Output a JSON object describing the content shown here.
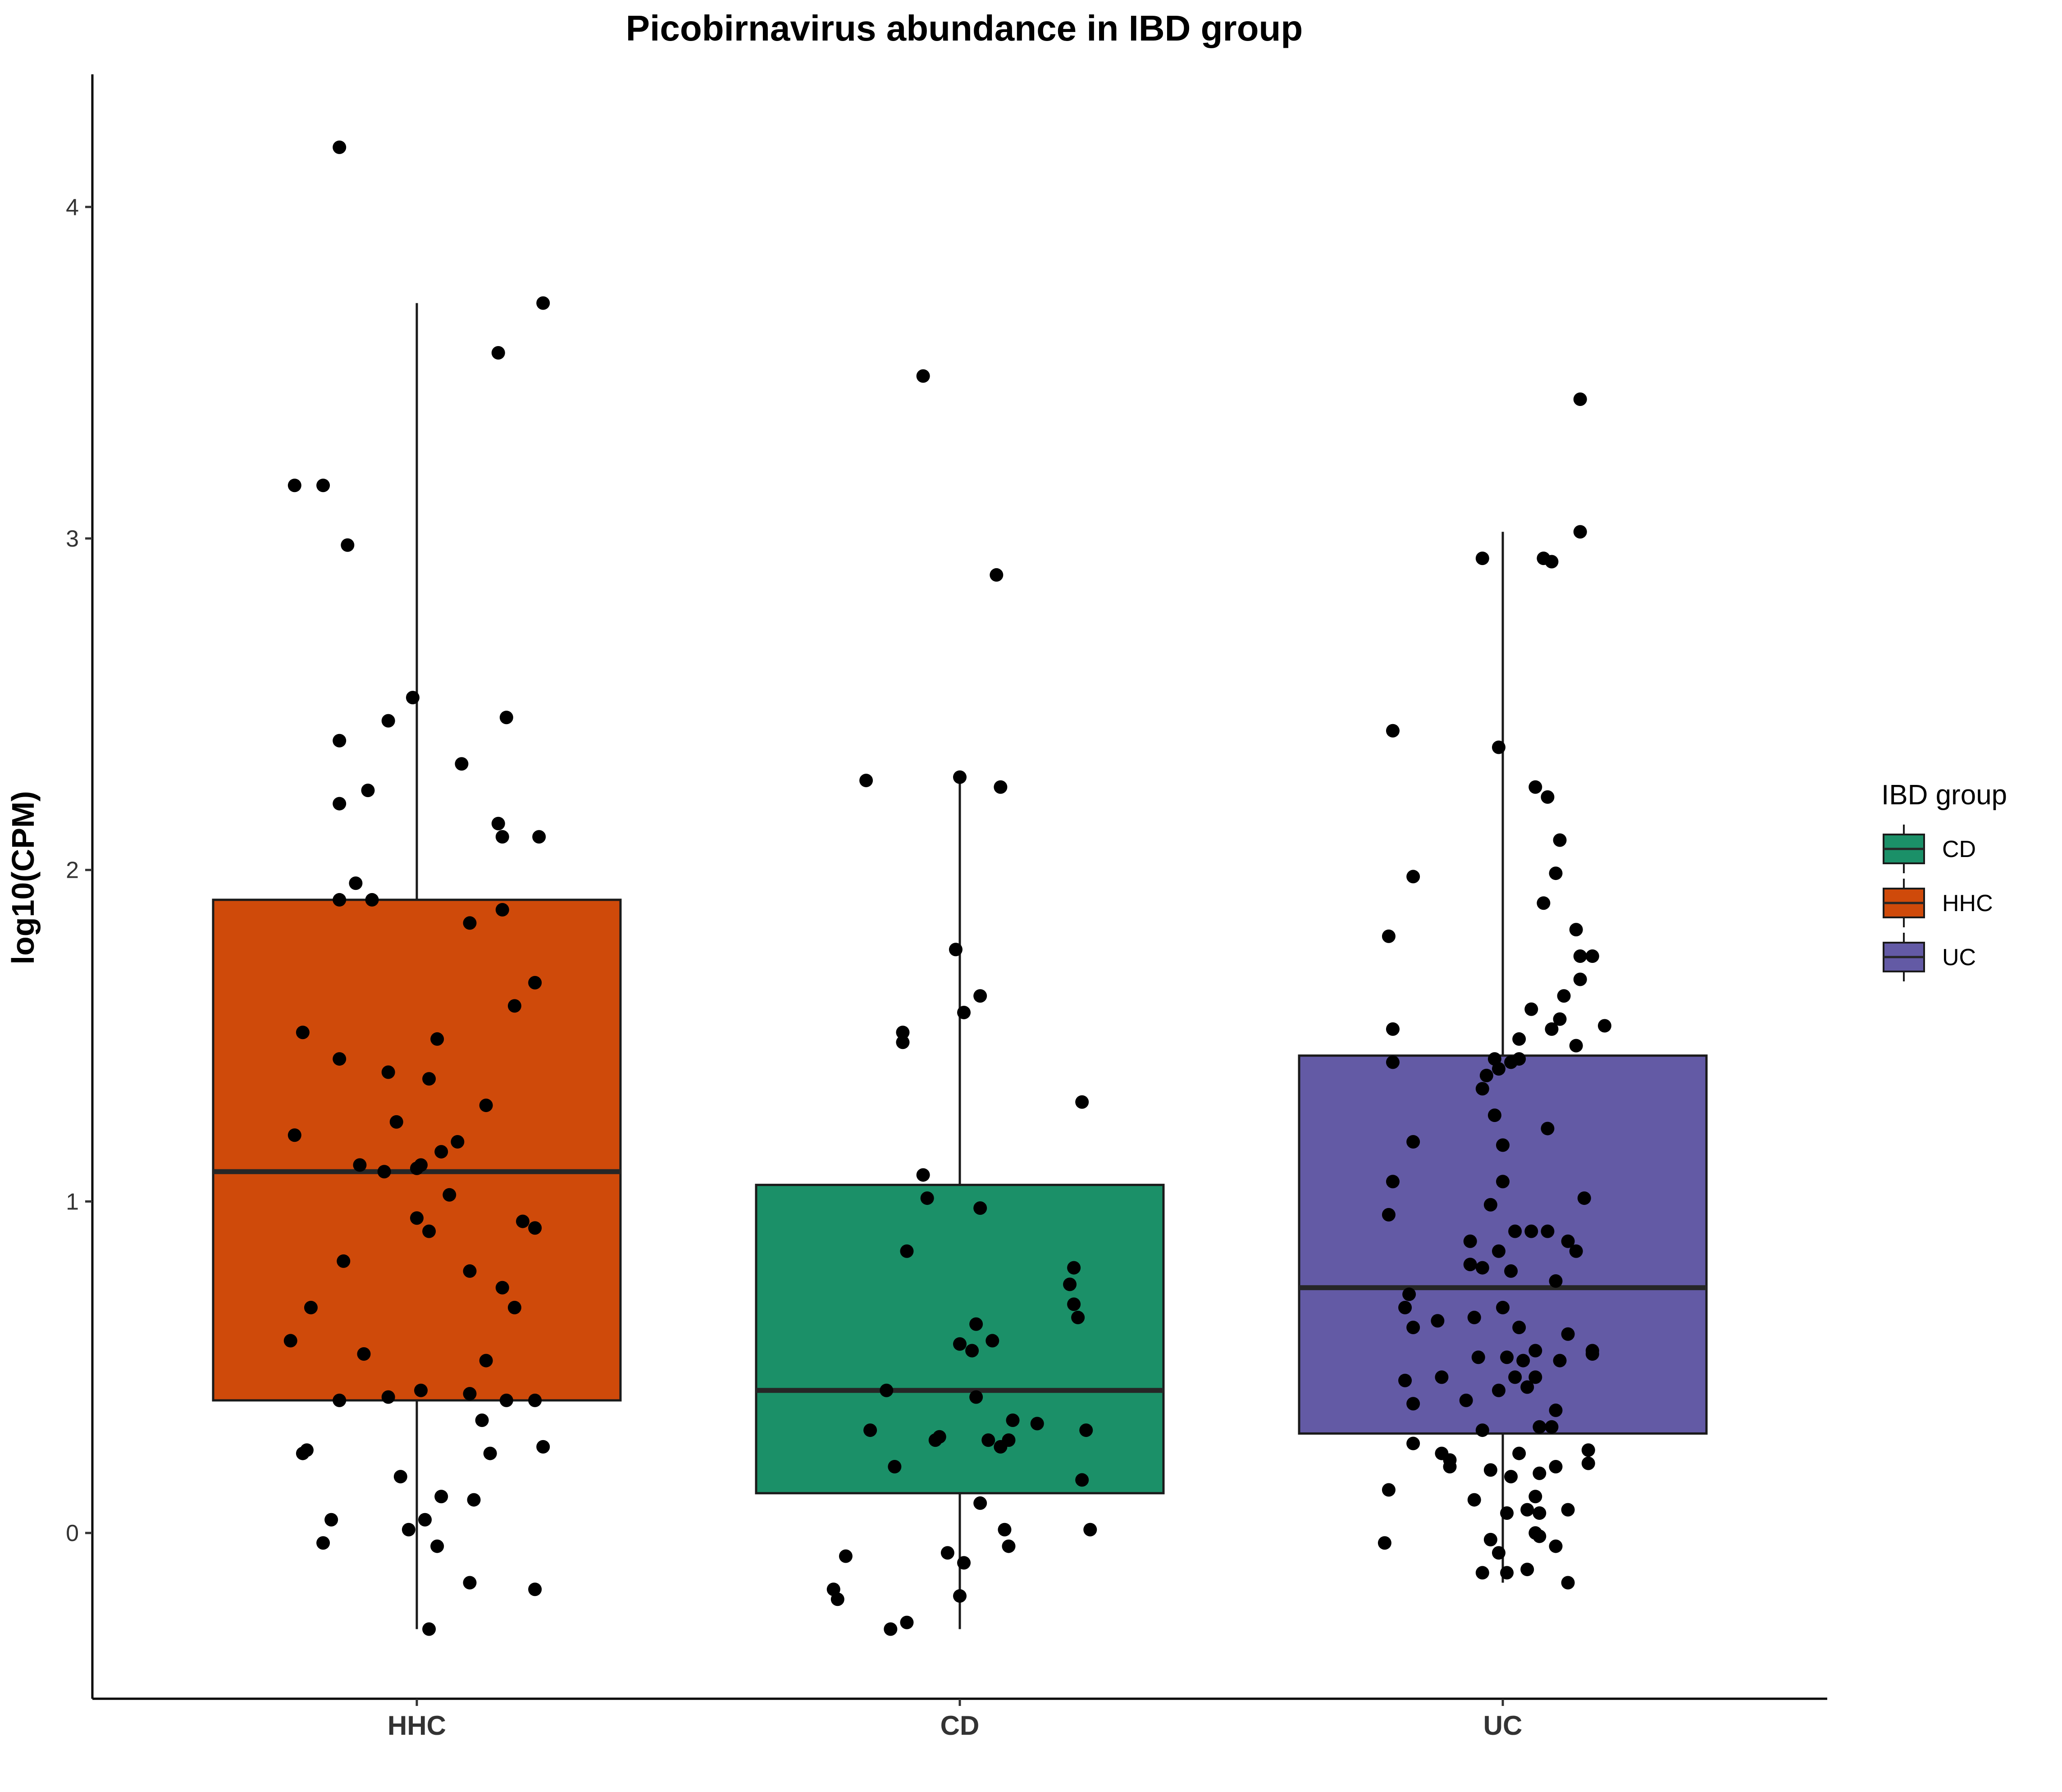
{
  "chart_data": {
    "type": "box",
    "title": "Picobirnavirus abundance in IBD group",
    "xlabel": "",
    "ylabel": "log10(CPM)",
    "ylim": [
      -0.5,
      4.4
    ],
    "yticks": [
      0,
      1,
      2,
      3,
      4
    ],
    "grid": false,
    "categories": [
      "HHC",
      "CD",
      "UC"
    ],
    "legend": {
      "title": "IBD group",
      "placement": "right",
      "entries": [
        {
          "label": "CD",
          "color": "#1b9068"
        },
        {
          "label": "HHC",
          "color": "#cf4a0a"
        },
        {
          "label": "UC",
          "color": "#635aa5"
        }
      ]
    },
    "boxes": [
      {
        "group": "HHC",
        "color": "#cf4a0a",
        "q1": 0.4,
        "median": 1.09,
        "q3": 1.91,
        "whisker_low": -0.29,
        "whisker_high": 3.71
      },
      {
        "group": "CD",
        "color": "#1b9068",
        "q1": 0.12,
        "median": 0.43,
        "q3": 1.05,
        "whisker_low": -0.29,
        "whisker_high": 2.29
      },
      {
        "group": "UC",
        "color": "#635aa5",
        "q1": 0.3,
        "median": 0.74,
        "q3": 1.44,
        "whisker_low": -0.15,
        "whisker_high": 3.02
      }
    ],
    "points": {
      "HHC": [
        [
          -0.19,
          4.18
        ],
        [
          0.31,
          3.71
        ],
        [
          0.2,
          3.56
        ],
        [
          -0.3,
          3.16
        ],
        [
          -0.23,
          3.16
        ],
        [
          -0.17,
          2.98
        ],
        [
          -0.01,
          2.52
        ],
        [
          0.22,
          2.46
        ],
        [
          -0.07,
          2.45
        ],
        [
          -0.19,
          2.39
        ],
        [
          0.11,
          2.32
        ],
        [
          -0.12,
          2.24
        ],
        [
          -0.19,
          2.2
        ],
        [
          0.2,
          2.14
        ],
        [
          0.21,
          2.1
        ],
        [
          0.3,
          2.1
        ],
        [
          -0.15,
          1.96
        ],
        [
          -0.19,
          1.91
        ],
        [
          -0.11,
          1.91
        ],
        [
          0.21,
          1.88
        ],
        [
          0.13,
          1.84
        ],
        [
          0.29,
          1.66
        ],
        [
          0.24,
          1.59
        ],
        [
          -0.28,
          1.51
        ],
        [
          0.05,
          1.49
        ],
        [
          -0.19,
          1.43
        ],
        [
          -0.07,
          1.39
        ],
        [
          0.03,
          1.37
        ],
        [
          0.17,
          1.29
        ],
        [
          -0.05,
          1.24
        ],
        [
          -0.3,
          1.2
        ],
        [
          0.1,
          1.18
        ],
        [
          0.06,
          1.15
        ],
        [
          -0.14,
          1.11
        ],
        [
          -0.08,
          1.09
        ],
        [
          0.0,
          1.1
        ],
        [
          0.01,
          1.11
        ],
        [
          0.08,
          1.02
        ],
        [
          0.0,
          0.95
        ],
        [
          0.03,
          0.91
        ],
        [
          0.26,
          0.94
        ],
        [
          0.29,
          0.92
        ],
        [
          -0.18,
          0.82
        ],
        [
          0.13,
          0.79
        ],
        [
          0.21,
          0.74
        ],
        [
          -0.26,
          0.68
        ],
        [
          0.24,
          0.68
        ],
        [
          -0.31,
          0.58
        ],
        [
          -0.13,
          0.54
        ],
        [
          0.17,
          0.52
        ],
        [
          0.01,
          0.43
        ],
        [
          0.13,
          0.42
        ],
        [
          -0.07,
          0.41
        ],
        [
          -0.19,
          0.4
        ],
        [
          0.22,
          0.4
        ],
        [
          0.29,
          0.4
        ],
        [
          0.16,
          0.34
        ],
        [
          -0.27,
          0.25
        ],
        [
          -0.28,
          0.24
        ],
        [
          0.18,
          0.24
        ],
        [
          0.31,
          0.26
        ],
        [
          -0.04,
          0.17
        ],
        [
          0.06,
          0.11
        ],
        [
          0.14,
          0.1
        ],
        [
          -0.21,
          0.04
        ],
        [
          0.02,
          0.04
        ],
        [
          -0.02,
          0.01
        ],
        [
          0.05,
          -0.04
        ],
        [
          -0.23,
          -0.03
        ],
        [
          0.13,
          -0.15
        ],
        [
          0.29,
          -0.17
        ],
        [
          0.03,
          -0.29
        ]
      ],
      "CD": [
        [
          -0.09,
          3.49
        ],
        [
          0.09,
          2.89
        ],
        [
          -0.23,
          2.27
        ],
        [
          0.0,
          2.28
        ],
        [
          0.1,
          2.25
        ],
        [
          -0.01,
          1.76
        ],
        [
          0.05,
          1.62
        ],
        [
          0.01,
          1.57
        ],
        [
          -0.14,
          1.51
        ],
        [
          -0.14,
          1.48
        ],
        [
          0.3,
          1.3
        ],
        [
          -0.09,
          1.08
        ],
        [
          -0.08,
          1.01
        ],
        [
          0.05,
          0.98
        ],
        [
          -0.13,
          0.85
        ],
        [
          0.28,
          0.8
        ],
        [
          0.27,
          0.75
        ],
        [
          0.28,
          0.69
        ],
        [
          0.29,
          0.65
        ],
        [
          0.04,
          0.63
        ],
        [
          0.08,
          0.58
        ],
        [
          0.0,
          0.57
        ],
        [
          0.03,
          0.55
        ],
        [
          -0.18,
          0.43
        ],
        [
          0.04,
          0.41
        ],
        [
          0.13,
          0.34
        ],
        [
          0.19,
          0.33
        ],
        [
          -0.22,
          0.31
        ],
        [
          0.31,
          0.31
        ],
        [
          0.12,
          0.28
        ],
        [
          -0.05,
          0.29
        ],
        [
          -0.06,
          0.28
        ],
        [
          0.07,
          0.28
        ],
        [
          0.1,
          0.26
        ],
        [
          -0.16,
          0.2
        ],
        [
          0.3,
          0.16
        ],
        [
          0.05,
          0.09
        ],
        [
          0.11,
          0.01
        ],
        [
          0.32,
          0.01
        ],
        [
          0.12,
          -0.04
        ],
        [
          -0.03,
          -0.06
        ],
        [
          -0.28,
          -0.07
        ],
        [
          0.01,
          -0.09
        ],
        [
          -0.31,
          -0.17
        ],
        [
          -0.3,
          -0.2
        ],
        [
          0.0,
          -0.19
        ],
        [
          -0.13,
          -0.27
        ],
        [
          -0.17,
          -0.29
        ]
      ],
      "UC": [
        [
          0.19,
          3.42
        ],
        [
          0.19,
          3.02
        ],
        [
          -0.05,
          2.94
        ],
        [
          0.1,
          2.94
        ],
        [
          0.12,
          2.93
        ],
        [
          -0.27,
          2.42
        ],
        [
          -0.01,
          2.37
        ],
        [
          0.08,
          2.25
        ],
        [
          0.11,
          2.22
        ],
        [
          0.14,
          2.09
        ],
        [
          0.13,
          1.99
        ],
        [
          -0.22,
          1.98
        ],
        [
          0.1,
          1.9
        ],
        [
          0.18,
          1.82
        ],
        [
          -0.28,
          1.8
        ],
        [
          0.19,
          1.74
        ],
        [
          0.22,
          1.74
        ],
        [
          0.19,
          1.67
        ],
        [
          0.15,
          1.62
        ],
        [
          0.07,
          1.58
        ],
        [
          0.14,
          1.55
        ],
        [
          0.12,
          1.52
        ],
        [
          0.25,
          1.53
        ],
        [
          -0.27,
          1.52
        ],
        [
          0.04,
          1.49
        ],
        [
          0.18,
          1.47
        ],
        [
          -0.27,
          1.42
        ],
        [
          0.02,
          1.42
        ],
        [
          0.04,
          1.43
        ],
        [
          -0.02,
          1.43
        ],
        [
          -0.01,
          1.4
        ],
        [
          -0.04,
          1.38
        ],
        [
          -0.05,
          1.34
        ],
        [
          -0.02,
          1.26
        ],
        [
          0.11,
          1.22
        ],
        [
          -0.22,
          1.18
        ],
        [
          0.0,
          1.17
        ],
        [
          0.0,
          1.06
        ],
        [
          -0.27,
          1.06
        ],
        [
          -0.03,
          0.99
        ],
        [
          0.2,
          1.01
        ],
        [
          -0.28,
          0.96
        ],
        [
          0.03,
          0.91
        ],
        [
          0.07,
          0.91
        ],
        [
          0.11,
          0.91
        ],
        [
          0.16,
          0.88
        ],
        [
          0.18,
          0.85
        ],
        [
          -0.08,
          0.88
        ],
        [
          -0.01,
          0.85
        ],
        [
          -0.08,
          0.81
        ],
        [
          -0.05,
          0.8
        ],
        [
          0.02,
          0.79
        ],
        [
          0.13,
          0.76
        ],
        [
          -0.23,
          0.72
        ],
        [
          -0.24,
          0.68
        ],
        [
          0.0,
          0.68
        ],
        [
          -0.07,
          0.65
        ],
        [
          -0.16,
          0.64
        ],
        [
          -0.22,
          0.62
        ],
        [
          0.04,
          0.62
        ],
        [
          0.16,
          0.6
        ],
        [
          0.08,
          0.55
        ],
        [
          0.22,
          0.55
        ],
        [
          0.22,
          0.54
        ],
        [
          -0.06,
          0.53
        ],
        [
          0.01,
          0.53
        ],
        [
          0.05,
          0.52
        ],
        [
          0.14,
          0.52
        ],
        [
          -0.15,
          0.47
        ],
        [
          -0.24,
          0.46
        ],
        [
          0.03,
          0.47
        ],
        [
          0.08,
          0.47
        ],
        [
          0.06,
          0.44
        ],
        [
          -0.01,
          0.43
        ],
        [
          -0.09,
          0.4
        ],
        [
          -0.22,
          0.39
        ],
        [
          0.13,
          0.37
        ],
        [
          -0.05,
          0.31
        ],
        [
          0.09,
          0.32
        ],
        [
          0.12,
          0.32
        ],
        [
          0.04,
          0.24
        ],
        [
          -0.15,
          0.24
        ],
        [
          -0.22,
          0.27
        ],
        [
          0.21,
          0.25
        ],
        [
          0.21,
          0.21
        ],
        [
          -0.13,
          0.22
        ],
        [
          -0.13,
          0.2
        ],
        [
          -0.03,
          0.19
        ],
        [
          0.02,
          0.17
        ],
        [
          0.09,
          0.18
        ],
        [
          0.13,
          0.2
        ],
        [
          -0.28,
          0.13
        ],
        [
          0.08,
          0.11
        ],
        [
          -0.07,
          0.1
        ],
        [
          0.06,
          0.07
        ],
        [
          0.09,
          0.06
        ],
        [
          0.01,
          0.06
        ],
        [
          0.16,
          0.07
        ],
        [
          0.08,
          0.0
        ],
        [
          0.09,
          -0.01
        ],
        [
          -0.29,
          -0.03
        ],
        [
          -0.03,
          -0.02
        ],
        [
          0.13,
          -0.04
        ],
        [
          -0.01,
          -0.06
        ],
        [
          0.06,
          -0.11
        ],
        [
          0.01,
          -0.12
        ],
        [
          -0.05,
          -0.12
        ],
        [
          0.16,
          -0.15
        ]
      ]
    }
  }
}
